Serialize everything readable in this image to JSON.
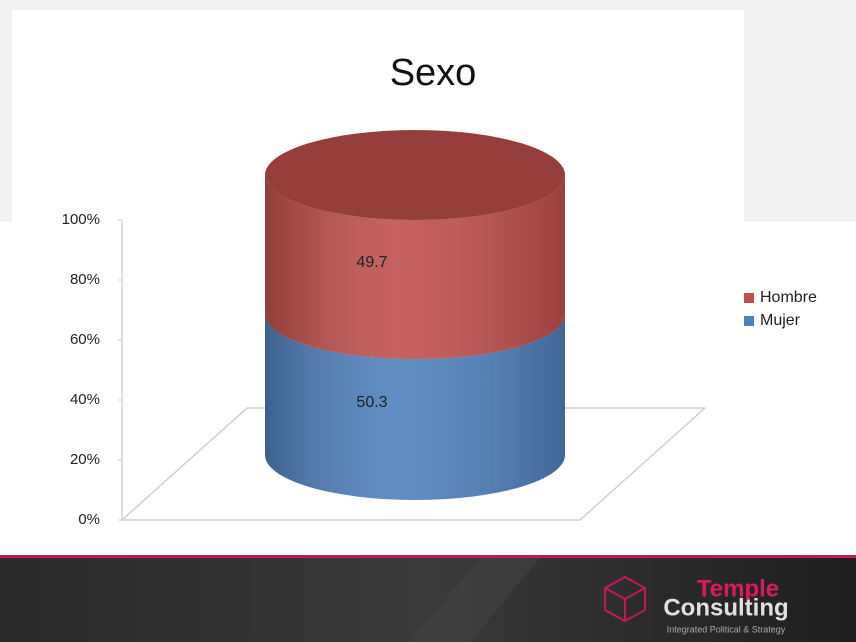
{
  "chart_data": {
    "type": "bar",
    "stacked": true,
    "title": "Sexo",
    "categories": [
      null
    ],
    "series": [
      {
        "name": "Mujer",
        "color": "#4f81bd",
        "values": [
          50.3
        ]
      },
      {
        "name": "Hombre",
        "color": "#c0504d",
        "values": [
          49.7
        ]
      }
    ],
    "ylim": [
      0,
      100
    ],
    "yticks": [
      {
        "value": 0,
        "label": "0%"
      },
      {
        "value": 20,
        "label": "20%"
      },
      {
        "value": 40,
        "label": "40%"
      },
      {
        "value": 60,
        "label": "60%"
      },
      {
        "value": 80,
        "label": "80%"
      },
      {
        "value": 100,
        "label": "100%"
      }
    ],
    "legend": "right"
  },
  "footer": {
    "brand_top": "Temple",
    "brand_bottom": "Consulting",
    "tagline": "Integrated Political & Strategy"
  }
}
